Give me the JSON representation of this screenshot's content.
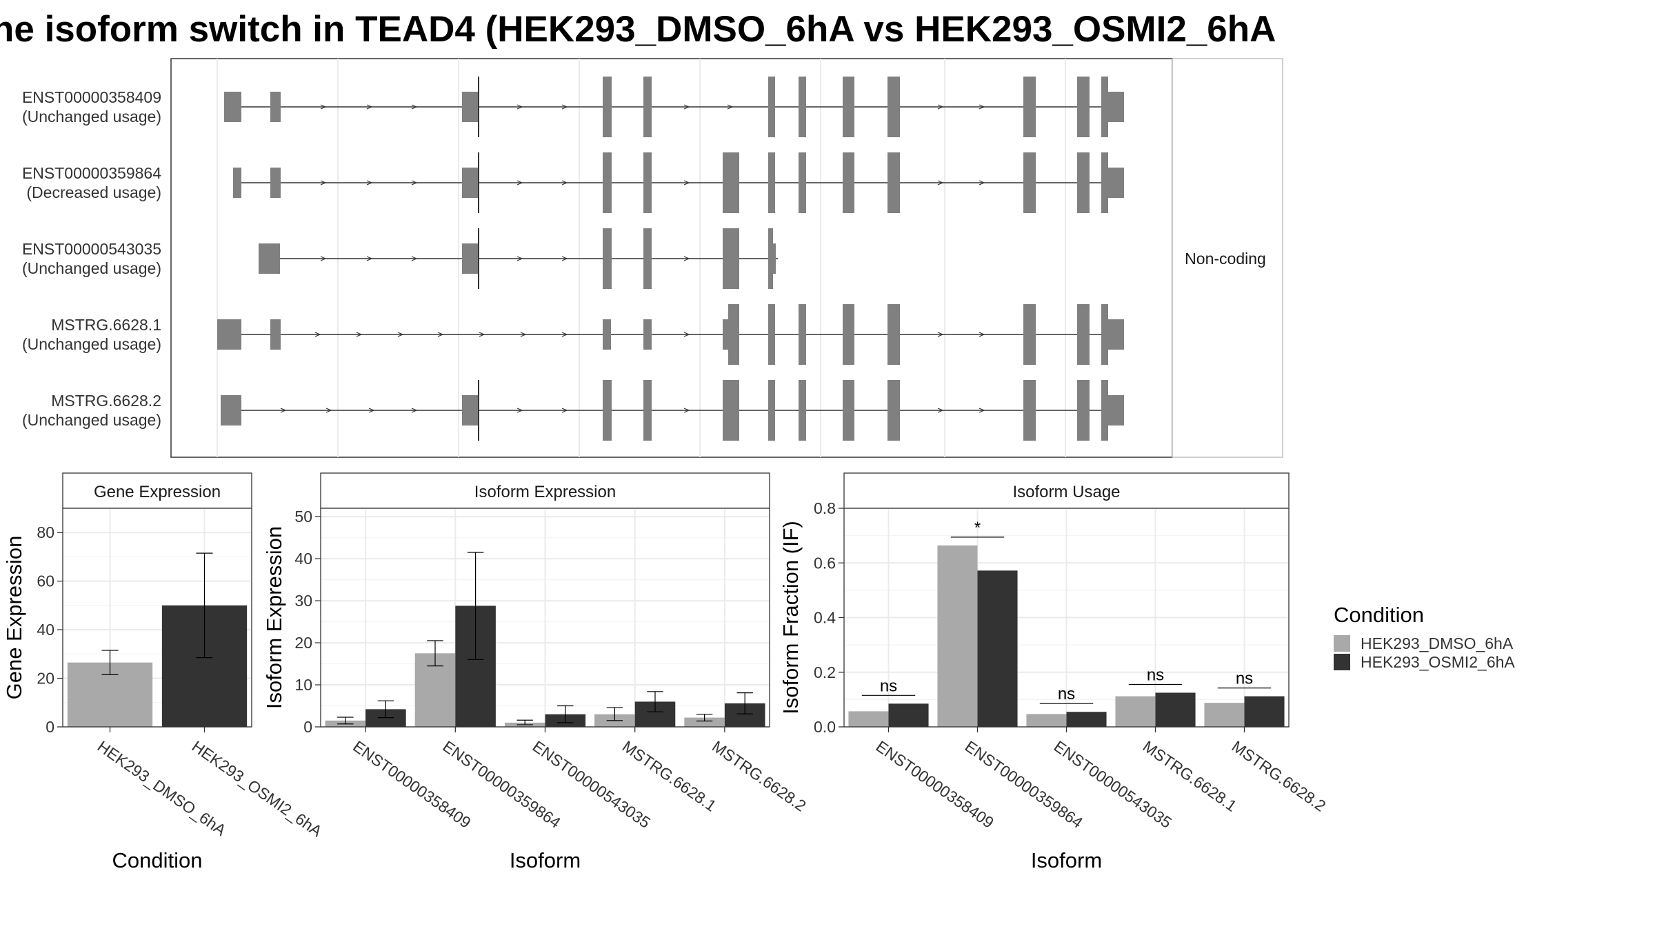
{
  "title": "he isoform switch in TEAD4 (HEK293_DMSO_6hA vs HEK293_OSMI2_6hA",
  "colors": {
    "dmso": "#a9a9a9",
    "osmi2": "#333333",
    "exon": "#808080"
  },
  "chart_data": [
    {
      "type": "gene-structure",
      "strip_label": "Non-coding",
      "isoforms": [
        {
          "id": "ENST00000358409",
          "status": "(Unchanged usage)"
        },
        {
          "id": "ENST00000359864",
          "status": "(Decreased usage)"
        },
        {
          "id": "ENST00000543035",
          "status": "(Unchanged usage)"
        },
        {
          "id": "MSTRG.6628.1",
          "status": "(Unchanged usage)"
        },
        {
          "id": "MSTRG.6628.2",
          "status": "(Unchanged usage)"
        }
      ]
    },
    {
      "type": "bar",
      "title": "Gene Expression",
      "xlabel": "Condition",
      "ylabel": "Gene Expression",
      "ylim": [
        0,
        90
      ],
      "yticks": [
        0,
        20,
        40,
        60,
        80
      ],
      "categories": [
        "HEK293_DMSO_6hA",
        "HEK293_OSMI2_6hA"
      ],
      "values": [
        26.5,
        50.0
      ],
      "errors": [
        [
          21.5,
          31.5
        ],
        [
          28.5,
          71.5
        ]
      ],
      "grid": true
    },
    {
      "type": "bar",
      "title": "Isoform Expression",
      "xlabel": "Isoform",
      "ylabel": "Isoform Expression",
      "ylim": [
        0,
        52
      ],
      "yticks": [
        0,
        10,
        20,
        30,
        40,
        50
      ],
      "categories": [
        "ENST00000358409",
        "ENST00000359864",
        "ENST00000543035",
        "MSTRG.6628.1",
        "MSTRG.6628.2"
      ],
      "series": [
        {
          "name": "HEK293_DMSO_6hA",
          "values": [
            1.5,
            17.5,
            1.0,
            3.0,
            2.2
          ],
          "errors": [
            [
              0.7,
              2.3
            ],
            [
              14.5,
              20.5
            ],
            [
              0.5,
              1.6
            ],
            [
              1.5,
              4.6
            ],
            [
              1.4,
              3.0
            ]
          ]
        },
        {
          "name": "HEK293_OSMI2_6hA",
          "values": [
            4.2,
            28.8,
            3.0,
            6.0,
            5.6
          ],
          "errors": [
            [
              2.2,
              6.2
            ],
            [
              16.0,
              41.5
            ],
            [
              1.0,
              5.0
            ],
            [
              3.6,
              8.4
            ],
            [
              3.1,
              8.1
            ]
          ]
        }
      ],
      "grid": true
    },
    {
      "type": "bar",
      "title": "Isoform Usage",
      "xlabel": "Isoform",
      "ylabel": "Isoform Fraction (IF)",
      "ylim": [
        0,
        0.8
      ],
      "yticks": [
        "0.0",
        "0.2",
        "0.4",
        "0.6",
        "0.8"
      ],
      "categories": [
        "ENST00000358409",
        "ENST00000359864",
        "ENST00000543035",
        "MSTRG.6628.1",
        "MSTRG.6628.2"
      ],
      "series": [
        {
          "name": "HEK293_DMSO_6hA",
          "values": [
            0.057,
            0.664,
            0.047,
            0.112,
            0.088
          ]
        },
        {
          "name": "HEK293_OSMI2_6hA",
          "values": [
            0.085,
            0.572,
            0.055,
            0.125,
            0.112
          ]
        }
      ],
      "significance": [
        "ns",
        "*",
        "ns",
        "ns",
        "ns"
      ],
      "grid": true
    }
  ],
  "legend": {
    "title": "Condition",
    "items": [
      "HEK293_DMSO_6hA",
      "HEK293_OSMI2_6hA"
    ],
    "placement": "right"
  }
}
